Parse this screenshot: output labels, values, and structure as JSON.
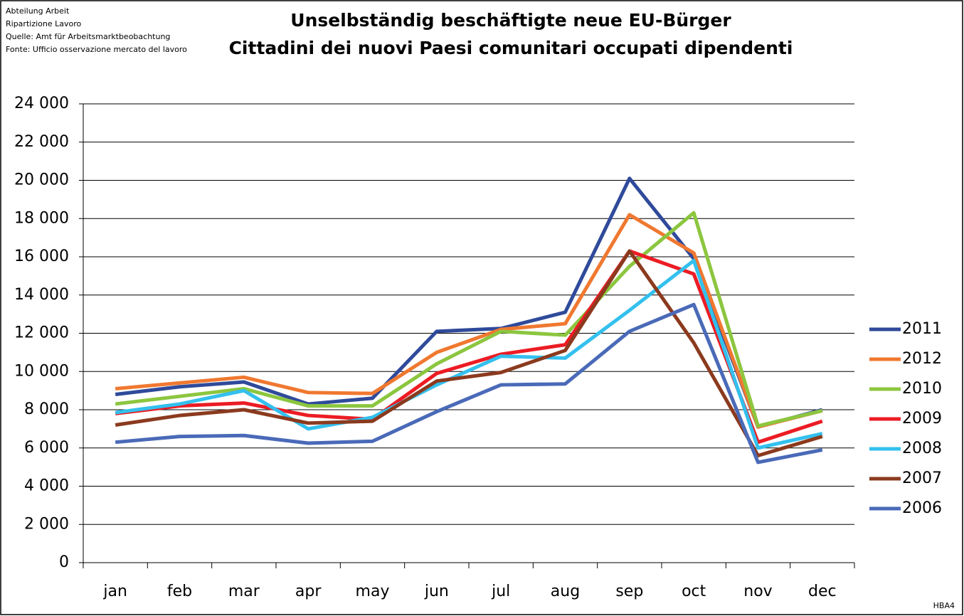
{
  "header": {
    "notes": [
      "Abteilung Arbeit",
      "Ripartizione Lavoro",
      "Quelle: Amt für Arbeitsmarktbeobachtung",
      "Fonte: Ufficio osservazione mercato del lavoro"
    ],
    "code": "HBA4"
  },
  "chart_data": {
    "type": "line",
    "title": [
      "Unselbständig beschäftigte neue EU-Bürger",
      "Cittadini dei nuovi Paesi comunitari occupati dipendenti"
    ],
    "categories": [
      "jan",
      "feb",
      "mar",
      "apr",
      "may",
      "jun",
      "jul",
      "aug",
      "sep",
      "oct",
      "nov",
      "dec"
    ],
    "series": [
      {
        "name": "2011",
        "color": "#2f4a9a",
        "values": [
          8800,
          9200,
          9450,
          8300,
          8600,
          12100,
          12250,
          13100,
          20100,
          15900,
          7100,
          8000
        ]
      },
      {
        "name": "2012",
        "color": "#f07830",
        "values": [
          9100,
          9400,
          9700,
          8900,
          8850,
          11000,
          12200,
          12500,
          18200,
          16200,
          7100,
          7950
        ]
      },
      {
        "name": "2010",
        "color": "#8cc63f",
        "values": [
          8300,
          8700,
          9100,
          8200,
          8200,
          10400,
          12100,
          11900,
          15500,
          18300,
          7150,
          7950
        ]
      },
      {
        "name": "2009",
        "color": "#ec1c24",
        "values": [
          7800,
          8200,
          8350,
          7700,
          7500,
          9900,
          10900,
          11400,
          16300,
          15100,
          6300,
          7400
        ]
      },
      {
        "name": "2008",
        "color": "#33c0ee",
        "values": [
          7850,
          8300,
          9000,
          7000,
          7600,
          9300,
          10800,
          10700,
          13200,
          15800,
          6000,
          6750
        ]
      },
      {
        "name": "2007",
        "color": "#8b3a1e",
        "values": [
          7200,
          7700,
          8000,
          7300,
          7400,
          9500,
          9950,
          11100,
          16300,
          11500,
          5600,
          6600
        ]
      },
      {
        "name": "2006",
        "color": "#4a6ab8",
        "values": [
          6300,
          6600,
          6650,
          6250,
          6350,
          7900,
          9300,
          9350,
          12100,
          13500,
          5250,
          5900
        ]
      }
    ],
    "ylim": [
      0,
      24000
    ],
    "yticks": [
      0,
      {
        "value": 2000,
        "label": "2 000"
      },
      {
        "value": 4000,
        "label": "4 000"
      },
      {
        "value": 6000,
        "label": "6 000"
      },
      {
        "value": 8000,
        "label": "8 000"
      },
      {
        "value": 10000,
        "label": "10 000"
      },
      {
        "value": 12000,
        "label": "12 000"
      },
      {
        "value": 14000,
        "label": "14 000"
      },
      {
        "value": 16000,
        "label": "16 000"
      },
      {
        "value": 18000,
        "label": "18 000"
      },
      {
        "value": 20000,
        "label": "20 000"
      },
      {
        "value": 22000,
        "label": "22 000"
      },
      {
        "value": 24000,
        "label": "24 000"
      }
    ],
    "grid": true,
    "legend": "right"
  }
}
